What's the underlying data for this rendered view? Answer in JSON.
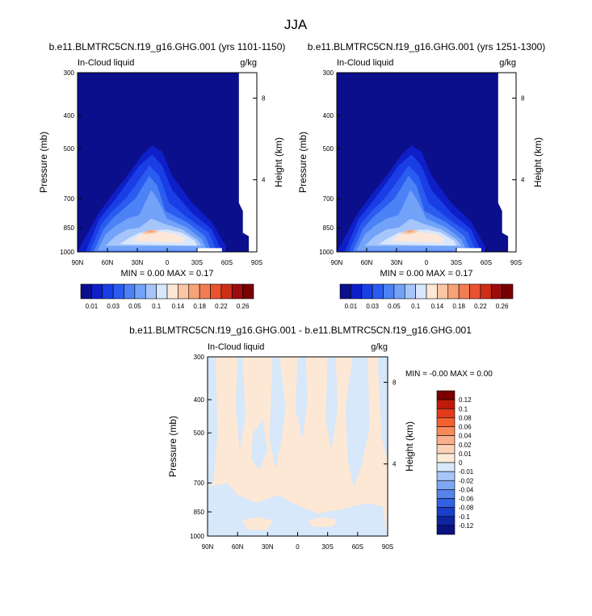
{
  "page_title": "JJA",
  "chart_data": [
    {
      "type": "heatmap",
      "title": "b.e11.BLMTRC5CN.f19_g16.GHG.001 (yrs 1101-1150)",
      "left_label": "In-Cloud liquid",
      "right_label": "g/kg",
      "xlabel": "",
      "ylabel": "Pressure (mb)",
      "y2label": "Height (km)",
      "x_ticks": [
        "90N",
        "60N",
        "30N",
        "0",
        "30S",
        "60S",
        "90S"
      ],
      "y_ticks": [
        "300",
        "400",
        "500",
        "700",
        "850",
        "1000"
      ],
      "y_tick_values": [
        300,
        400,
        500,
        700,
        850,
        1000
      ],
      "y2_ticks": [
        "8",
        "4"
      ],
      "y2_tick_pressures": [
        356,
        616
      ],
      "ylim": [
        1000,
        300
      ],
      "xlim": [
        90,
        -90
      ],
      "stats": "MIN =  0.00  MAX =  0.17",
      "missing_above_pressure_beyond": [
        {
          "lat": -75,
          "p": 720
        },
        {
          "lat": -80,
          "p": 960
        }
      ],
      "blobs": [
        {
          "lat": 20,
          "p": 865,
          "level": 0.17
        },
        {
          "lat": 25,
          "p": 870,
          "level": 0.12
        },
        {
          "lat": -10,
          "p": 870,
          "level": 0.09
        },
        {
          "lat": 35,
          "p": 820,
          "level": 0.06
        },
        {
          "lat": 15,
          "p": 640,
          "level": 0.04
        },
        {
          "lat": 55,
          "p": 780,
          "level": 0.04
        }
      ]
    },
    {
      "type": "heatmap",
      "title": "b.e11.BLMTRC5CN.f19_g16.GHG.001 (yrs 1251-1300)",
      "left_label": "In-Cloud liquid",
      "right_label": "g/kg",
      "xlabel": "",
      "ylabel": "Pressure (mb)",
      "y2label": "Height (km)",
      "x_ticks": [
        "90N",
        "60N",
        "30N",
        "0",
        "30S",
        "60S",
        "90S"
      ],
      "y_ticks": [
        "300",
        "400",
        "500",
        "700",
        "850",
        "1000"
      ],
      "y_tick_values": [
        300,
        400,
        500,
        700,
        850,
        1000
      ],
      "y2_ticks": [
        "8",
        "4"
      ],
      "y2_tick_pressures": [
        356,
        616
      ],
      "ylim": [
        1000,
        300
      ],
      "xlim": [
        90,
        -90
      ],
      "stats": "MIN =  0.00  MAX =  0.17"
    },
    {
      "type": "heatmap",
      "title": "b.e11.BLMTRC5CN.f19_g16.GHG.001 - b.e11.BLMTRC5CN.f19_g16.GHG.001",
      "left_label": "In-Cloud liquid",
      "right_label": "g/kg",
      "xlabel": "",
      "ylabel": "Pressure (mb)",
      "y2label": "Height (km)",
      "x_ticks": [
        "90N",
        "60N",
        "30N",
        "0",
        "30S",
        "60S",
        "90S"
      ],
      "y_ticks": [
        "300",
        "400",
        "500",
        "700",
        "850",
        "1000"
      ],
      "y_tick_values": [
        300,
        400,
        500,
        700,
        850,
        1000
      ],
      "y2_ticks": [
        "8",
        "4"
      ],
      "y2_tick_pressures": [
        356,
        616
      ],
      "ylim": [
        1000,
        300
      ],
      "xlim": [
        90,
        -90
      ],
      "stats": "MIN = -0.00  MAX =  0.00"
    }
  ],
  "colorbar_top": {
    "labels": [
      "0.01",
      "0.03",
      "0.05",
      "0.1",
      "0.14",
      "0.18",
      "0.22",
      "0.26"
    ],
    "colors": [
      "#0b0f8c",
      "#0f1fc8",
      "#1a3ee6",
      "#2b5cf0",
      "#4c82f6",
      "#73a3f8",
      "#a6c6fb",
      "#d9e7fd",
      "#fde7d8",
      "#fbc6a4",
      "#f8a278",
      "#f37d52",
      "#ea5230",
      "#cf2d18",
      "#9c0c0c",
      "#7a0000"
    ]
  },
  "colorbar_diff": {
    "labels": [
      "0.12",
      "0.1",
      "0.08",
      "0.06",
      "0.04",
      "0.02",
      "0.01",
      "0",
      "-0.01",
      "-0.02",
      "-0.04",
      "-0.06",
      "-0.08",
      "-0.1",
      "-0.12"
    ],
    "colors": [
      "#7a0000",
      "#c01a0a",
      "#e43a1c",
      "#f4602e",
      "#f78a5a",
      "#f9b08c",
      "#fbd2b8",
      "#fdebd9",
      "#d8e8fb",
      "#a7c6f7",
      "#7ea6f2",
      "#5583ea",
      "#3460e2",
      "#1a3ec8",
      "#0f24a0",
      "#0a1280"
    ]
  },
  "diff_colors": {
    "positive": "#fde8d6",
    "negative": "#d6e8fa"
  }
}
